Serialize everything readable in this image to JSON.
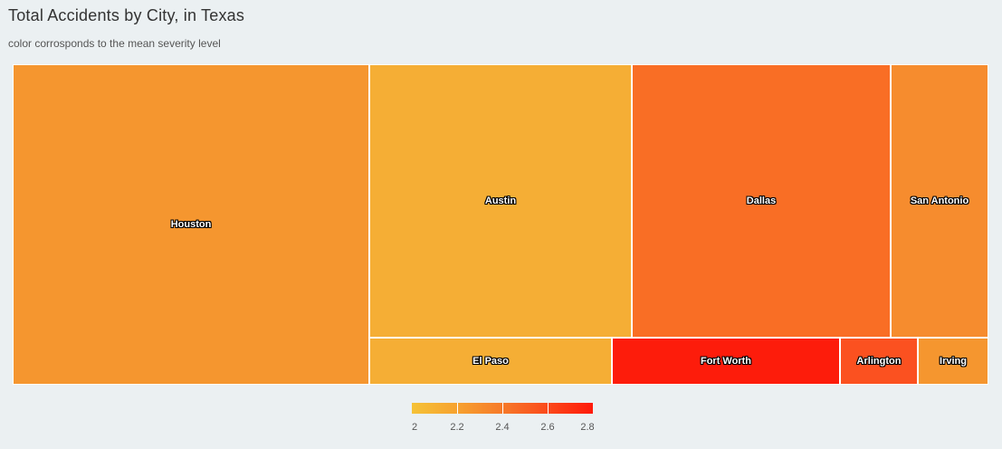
{
  "title": "Total Accidents by City, in Texas",
  "subtitle": "color corrosponds to the mean severity level",
  "chart_data": {
    "type": "treemap",
    "color_metric": "mean severity level",
    "color_scale": {
      "min": 2,
      "max": 2.8,
      "ticks": [
        "2",
        "2.2",
        "2.4",
        "2.6",
        "2.8"
      ],
      "tick_values": [
        2,
        2.2,
        2.4,
        2.6,
        2.8
      ],
      "stops": [
        {
          "value": 2.0,
          "color": "#f5c237"
        },
        {
          "value": 2.2,
          "color": "#f6a230"
        },
        {
          "value": 2.4,
          "color": "#f67a2a"
        },
        {
          "value": 2.6,
          "color": "#fb4a1b"
        },
        {
          "value": 2.8,
          "color": "#ff1a0a"
        }
      ]
    },
    "cities": [
      {
        "name": "Houston",
        "severity": 2.22,
        "color": "#f5962f"
      },
      {
        "name": "Austin",
        "severity": 2.1,
        "color": "#f5ae35"
      },
      {
        "name": "Dallas",
        "severity": 2.38,
        "color": "#f96e25"
      },
      {
        "name": "San Antonio",
        "severity": 2.24,
        "color": "#f68c2e"
      },
      {
        "name": "El Paso",
        "severity": 2.1,
        "color": "#f5ae35"
      },
      {
        "name": "Fort Worth",
        "severity": 2.78,
        "color": "#fd1c0b"
      },
      {
        "name": "Arlington",
        "severity": 2.52,
        "color": "#fb5120"
      },
      {
        "name": "Irving",
        "severity": 2.22,
        "color": "#f5962f"
      }
    ]
  }
}
